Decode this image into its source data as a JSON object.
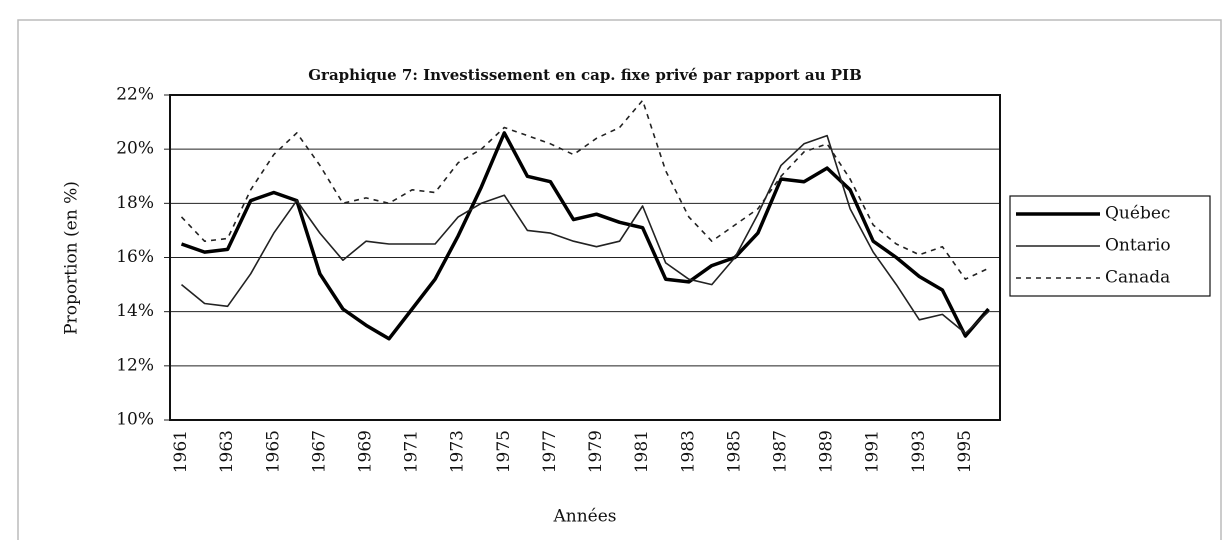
{
  "chart_data": {
    "type": "line",
    "title": "Graphique 7: Investissement en cap. fixe privé par rapport au PIB",
    "y_label": "Proportion (en %)",
    "x_label": "Années",
    "categories": [
      "1961",
      null,
      "1963",
      null,
      "1965",
      null,
      "1967",
      null,
      "1969",
      null,
      "1971",
      null,
      "1973",
      null,
      "1975",
      null,
      "1977",
      null,
      "1979",
      null,
      "1981",
      null,
      "1983",
      null,
      "1985",
      null,
      "1987",
      null,
      "1989",
      null,
      "1991",
      null,
      "1993",
      null,
      "1995",
      null
    ],
    "series": [
      {
        "name": "Québec",
        "color": "#000000",
        "width": 3.5,
        "dash": false,
        "values": [
          16.5,
          16.2,
          16.3,
          18.1,
          18.4,
          18.1,
          15.4,
          14.1,
          13.5,
          13.0,
          14.1,
          15.2,
          16.8,
          18.6,
          20.6,
          19.0,
          18.8,
          17.4,
          17.6,
          17.3,
          17.1,
          15.2,
          15.1,
          15.7,
          16.0,
          16.9,
          18.9,
          18.8,
          19.3,
          18.5,
          16.6,
          16.0,
          15.3,
          14.8,
          13.1,
          14.1
        ]
      },
      {
        "name": "Ontario",
        "color": "#222222",
        "width": 1.6,
        "dash": false,
        "values": [
          15.0,
          14.3,
          14.2,
          15.4,
          16.9,
          18.1,
          16.9,
          15.9,
          16.6,
          16.5,
          16.5,
          16.5,
          17.5,
          18.0,
          18.3,
          17.0,
          16.9,
          16.6,
          16.4,
          16.6,
          17.9,
          15.8,
          15.2,
          15.0,
          16.0,
          17.6,
          19.4,
          20.2,
          20.5,
          17.8,
          16.2,
          15.0,
          13.7,
          13.9,
          13.2,
          14.0
        ]
      },
      {
        "name": "Canada",
        "color": "#222222",
        "width": 1.6,
        "dash": true,
        "values": [
          17.5,
          16.6,
          16.7,
          18.5,
          19.8,
          20.6,
          19.4,
          18.0,
          18.2,
          18.0,
          18.5,
          18.4,
          19.5,
          20.0,
          20.8,
          20.5,
          20.2,
          19.8,
          20.4,
          20.8,
          21.8,
          19.2,
          17.5,
          16.6,
          17.2,
          17.8,
          19.0,
          19.9,
          20.2,
          18.9,
          17.2,
          16.5,
          16.1,
          16.4,
          15.2,
          15.6
        ]
      }
    ],
    "ylim": [
      10,
      22
    ],
    "yticks": [
      {
        "value": 10,
        "label": "10%"
      },
      {
        "value": 12,
        "label": "12%"
      },
      {
        "value": 14,
        "label": "14%"
      },
      {
        "value": 16,
        "label": "16%"
      },
      {
        "value": 18,
        "label": "18%"
      },
      {
        "value": 20,
        "label": "20%"
      },
      {
        "value": 22,
        "label": "22%"
      }
    ],
    "grid": true,
    "legend": "right"
  }
}
